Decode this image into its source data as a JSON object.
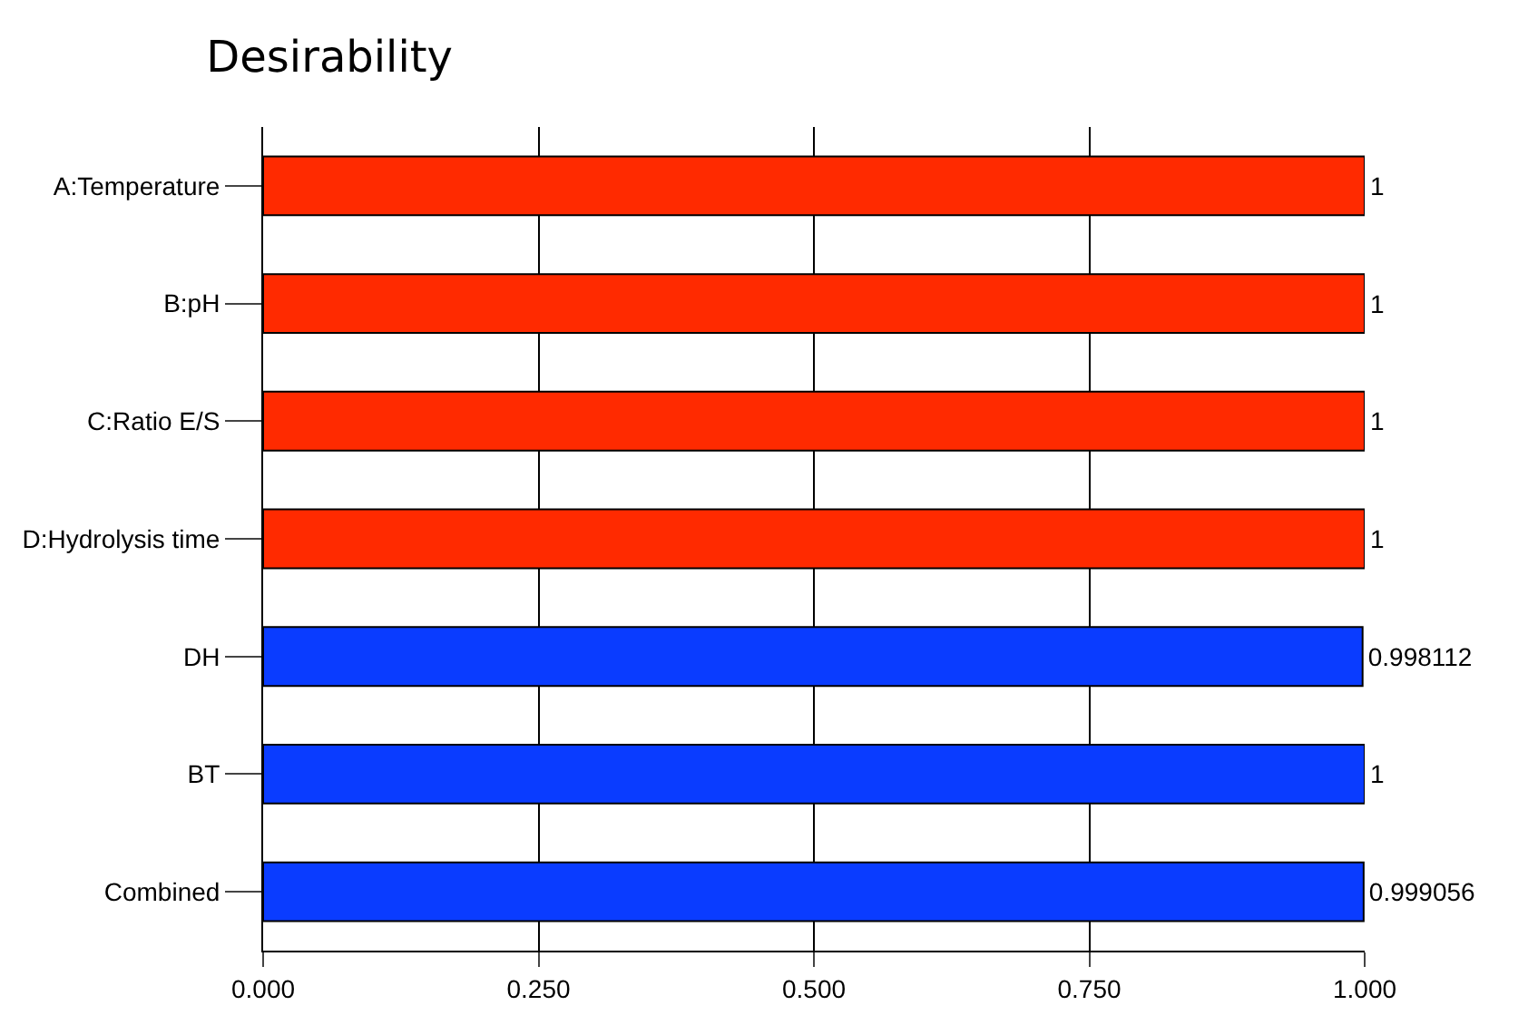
{
  "chart_data": {
    "type": "bar",
    "title": "Desirability",
    "orientation": "horizontal",
    "categories": [
      "A:Temperature",
      "B:pH",
      "C:Ratio E/S",
      "D:Hydrolysis time",
      "DH",
      "BT",
      "Combined"
    ],
    "values": [
      1,
      1,
      1,
      1,
      0.998112,
      1,
      0.999056
    ],
    "colors": [
      "#ff2a00",
      "#ff2a00",
      "#ff2a00",
      "#ff2a00",
      "#0a3cff",
      "#0a3cff",
      "#0a3cff"
    ],
    "value_labels": [
      "1",
      "1",
      "1",
      "1",
      "0.998112",
      "1",
      "0.999056"
    ],
    "xlim": [
      0,
      1
    ],
    "xticks": [
      {
        "value": 0,
        "label": "0.000"
      },
      {
        "value": 0.25,
        "label": "0.250"
      },
      {
        "value": 0.5,
        "label": "0.500"
      },
      {
        "value": 0.75,
        "label": "0.750"
      },
      {
        "value": 1,
        "label": "1.000"
      }
    ],
    "grid": "x"
  }
}
